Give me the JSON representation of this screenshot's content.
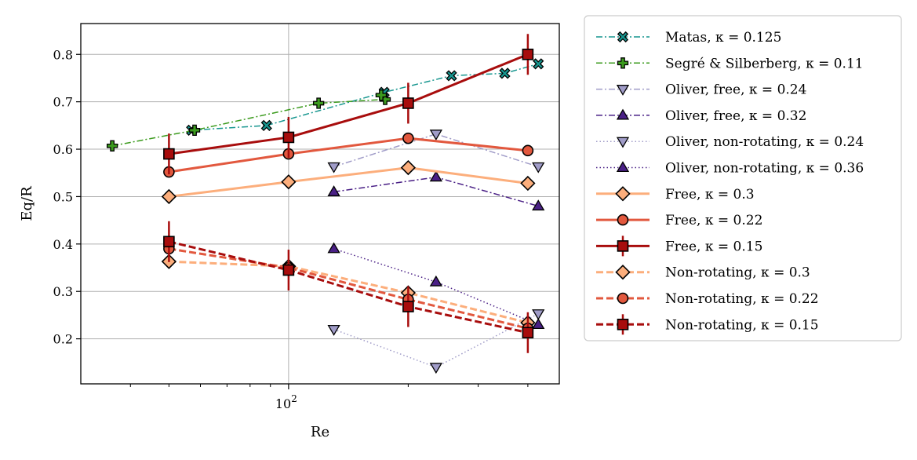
{
  "chart_data": {
    "type": "line",
    "xscale": "log",
    "xlabel": "Re",
    "ylabel": "Eq/R",
    "xlim": [
      30,
      480
    ],
    "ylim": [
      0.105,
      0.865
    ],
    "x_major_ticks": [
      {
        "value": 100,
        "base": "10",
        "exp": "2"
      }
    ],
    "y_ticks": [
      0.2,
      0.3,
      0.4,
      0.5,
      0.6,
      0.7,
      0.8
    ],
    "y_tick_labels": [
      "0.2",
      "0.3",
      "0.4",
      "0.5",
      "0.6",
      "0.7",
      "0.8"
    ],
    "grid": true,
    "legend_position": "outside-right",
    "series": [
      {
        "name": "Matas, κ = 0.125",
        "color": "#17968f",
        "dash": "dashdot",
        "width": 1.5,
        "marker": "x",
        "x": [
          57,
          88,
          174,
          257,
          350,
          425
        ],
        "y": [
          0.64,
          0.65,
          0.72,
          0.755,
          0.76,
          0.78
        ]
      },
      {
        "name": "Segré & Silberberg, κ = 0.11",
        "color": "#3c9b1e",
        "dash": "dashdot",
        "width": 1.5,
        "marker": "plus",
        "x": [
          36,
          58,
          119,
          175,
          171
        ],
        "y": [
          0.607,
          0.64,
          0.697,
          0.705,
          0.714
        ]
      },
      {
        "name": "Oliver, free, κ = 0.24",
        "color": "#a09cc8",
        "dash": "dashdot",
        "width": 1.5,
        "marker": "tri_down",
        "x": [
          130,
          235,
          425
        ],
        "y": [
          0.563,
          0.632,
          0.563
        ]
      },
      {
        "name": "Oliver, free, κ = 0.32",
        "color": "#4a2086",
        "dash": "dashdot",
        "width": 1.5,
        "marker": "tri_up",
        "x": [
          130,
          235,
          425
        ],
        "y": [
          0.51,
          0.541,
          0.48
        ]
      },
      {
        "name": "Oliver, non-rotating, κ = 0.24",
        "color": "#a09cc8",
        "dash": "dotted",
        "width": 1.5,
        "marker": "tri_down",
        "x": [
          130,
          235,
          425
        ],
        "y": [
          0.22,
          0.14,
          0.253
        ]
      },
      {
        "name": "Oliver, non-rotating, κ = 0.36",
        "color": "#4a2086",
        "dash": "dotted",
        "width": 1.5,
        "marker": "tri_up",
        "x": [
          130,
          235,
          425
        ],
        "y": [
          0.39,
          0.32,
          0.23
        ]
      },
      {
        "name": "Free, κ = 0.3",
        "color": "#fcae7c",
        "dash": "solid",
        "width": 3,
        "marker": "diamond",
        "x": [
          50,
          100,
          200,
          400
        ],
        "y": [
          0.5,
          0.531,
          0.561,
          0.528
        ]
      },
      {
        "name": "Free, κ = 0.22",
        "color": "#e2583e",
        "dash": "solid",
        "width": 3,
        "marker": "circle",
        "x": [
          50,
          100,
          200,
          400
        ],
        "y": [
          0.552,
          0.59,
          0.623,
          0.597
        ]
      },
      {
        "name": "Free, κ = 0.15",
        "color": "#a80d0d",
        "dash": "solid",
        "width": 3,
        "marker": "square",
        "errorbar": true,
        "x": [
          50,
          100,
          200,
          400
        ],
        "y": [
          0.59,
          0.625,
          0.697,
          0.8
        ]
      },
      {
        "name": "Non-rotating, κ = 0.3",
        "color": "#fcae7c",
        "dash": "dashed",
        "width": 3,
        "marker": "diamond",
        "x": [
          50,
          100,
          200,
          400
        ],
        "y": [
          0.363,
          0.353,
          0.297,
          0.234
        ]
      },
      {
        "name": "Non-rotating, κ = 0.22",
        "color": "#e2583e",
        "dash": "dashed",
        "width": 3,
        "marker": "circle",
        "x": [
          50,
          100,
          200,
          400
        ],
        "y": [
          0.39,
          0.35,
          0.283,
          0.222
        ]
      },
      {
        "name": "Non-rotating, κ = 0.15",
        "color": "#a80d0d",
        "dash": "dashed",
        "width": 3,
        "marker": "square",
        "errorbar": true,
        "x": [
          50,
          100,
          200,
          400
        ],
        "y": [
          0.405,
          0.345,
          0.268,
          0.213
        ]
      }
    ]
  }
}
